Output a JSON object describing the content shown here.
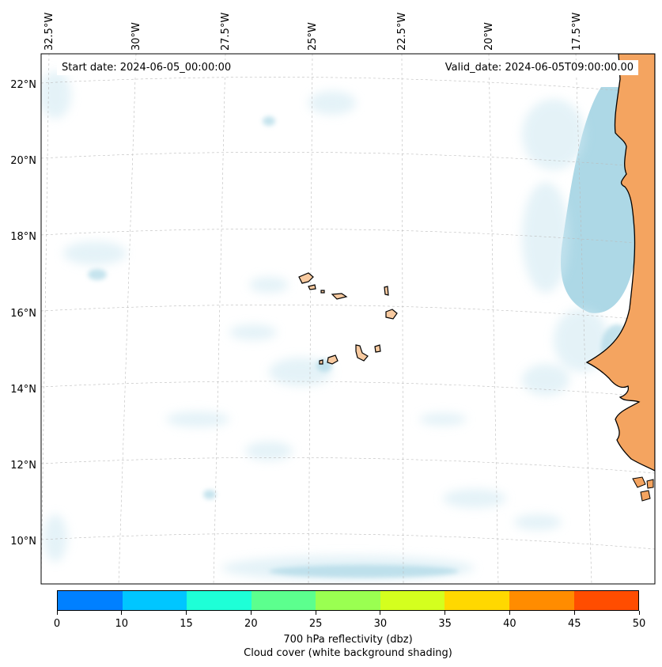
{
  "map": {
    "start_date": "Start date: 2024-06-05_00:00:00",
    "valid_date": "Valid_date: 2024-06-05T09:00:00.00",
    "lon_labels": [
      "32.5°W",
      "30°W",
      "27.5°W",
      "25°W",
      "22.5°W",
      "20°W",
      "17.5°W"
    ],
    "lat_labels": [
      "22°N",
      "20°N",
      "18°N",
      "16°N",
      "14°N",
      "12°N",
      "10°N"
    ],
    "gridlines": "dashed",
    "land_color": "#f4a460",
    "island_color": "#f8caa0",
    "cloud_color": "#add8e6",
    "coastline_color": "#000000"
  },
  "colorbar": {
    "ticks": [
      "0",
      "10",
      "15",
      "20",
      "25",
      "30",
      "35",
      "40",
      "45",
      "50"
    ],
    "colors": [
      "#0080ff",
      "#00c6ff",
      "#1effd7",
      "#5cff8e",
      "#9aff51",
      "#d4ff1e",
      "#ffd800",
      "#ff8c00",
      "#ff4d00"
    ],
    "label": "700 hPa reflectivity (dbz)",
    "sublabel": "Cloud cover (white background shading)"
  }
}
